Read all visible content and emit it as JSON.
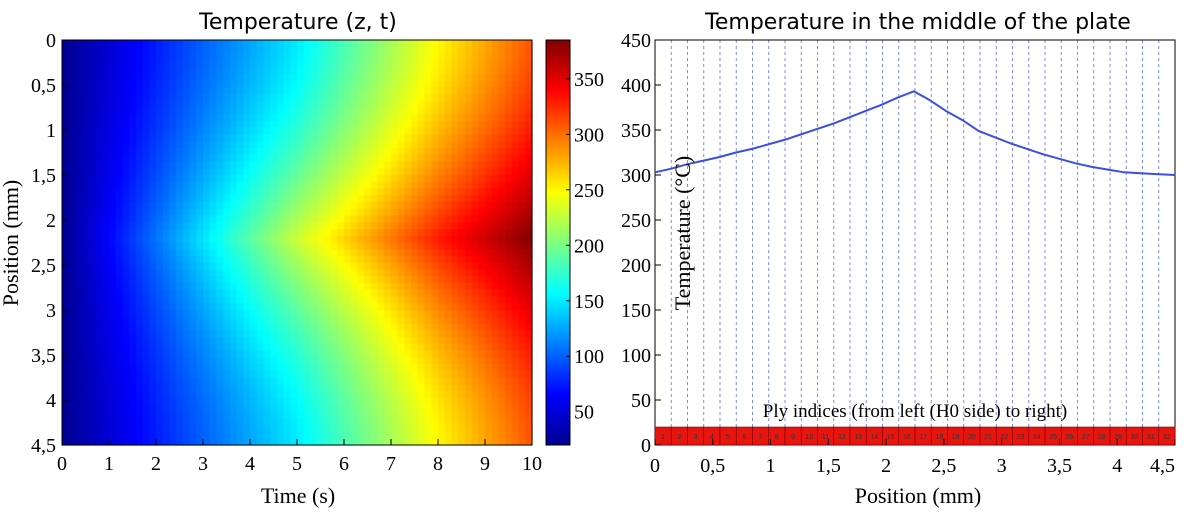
{
  "chart_data": [
    {
      "type": "heatmap",
      "title": "Temperature  (z, t)",
      "xlabel": "Time (s)",
      "ylabel": "Position  (mm)",
      "x_ticks": [
        "0",
        "1",
        "2",
        "3",
        "4",
        "5",
        "6",
        "7",
        "8",
        "9",
        "10"
      ],
      "y_ticks": [
        "0",
        "0,5",
        "1",
        "1,5",
        "2",
        "2,5",
        "3",
        "3,5",
        "4",
        "4,5"
      ],
      "xlim": [
        0,
        10
      ],
      "ylim": [
        0,
        4.5
      ],
      "y_inverted": true,
      "colormap": "jet",
      "colorbar": {
        "min": 20,
        "max": 385,
        "ticks": [
          "50",
          "100",
          "150",
          "200",
          "250",
          "300",
          "350"
        ]
      },
      "hot_layer_position_mm": 2.2,
      "surface_temperature_by_time": {
        "t": [
          0,
          5,
          8,
          10
        ],
        "T": [
          25,
          150,
          250,
          310
        ]
      },
      "core_temperature_by_time": {
        "t": [
          0,
          5,
          8,
          10
        ],
        "T": [
          25,
          230,
          330,
          385
        ]
      }
    },
    {
      "type": "line",
      "title": "Temperature in the middle of the plate",
      "xlabel": "Position (mm)",
      "ylabel": "Temperature (°C)",
      "xlim": [
        0,
        4.5
      ],
      "ylim": [
        0,
        450
      ],
      "x_ticks": [
        "0",
        "0,5",
        "1",
        "1,5",
        "2",
        "2,5",
        "3",
        "3,5",
        "4",
        "4,5"
      ],
      "y_ticks": [
        "0",
        "50",
        "100",
        "150",
        "200",
        "250",
        "300",
        "350",
        "400",
        "450"
      ],
      "series": [
        {
          "color": "#3b4fe0",
          "x": [
            0,
            0.14,
            0.28,
            0.42,
            0.56,
            0.7,
            0.84,
            0.98,
            1.12,
            1.26,
            1.4,
            1.54,
            1.68,
            1.82,
            1.96,
            2.1,
            2.24,
            2.38,
            2.52,
            2.66,
            2.8,
            2.94,
            3.08,
            3.22,
            3.36,
            3.5,
            3.64,
            3.78,
            3.92,
            4.06,
            4.2,
            4.34,
            4.5
          ],
          "y": [
            303,
            307,
            312,
            316,
            320,
            325,
            329,
            334,
            339,
            345,
            351,
            357,
            364,
            371,
            378,
            386,
            393,
            383,
            371,
            361,
            349,
            342,
            335,
            329,
            323,
            318,
            313,
            309,
            306,
            303,
            302,
            301,
            300
          ]
        }
      ],
      "annotation": "Ply indices (from left (H0 side) to right)",
      "ply_count": 32,
      "ply_bar_color": "#e8150f"
    }
  ]
}
